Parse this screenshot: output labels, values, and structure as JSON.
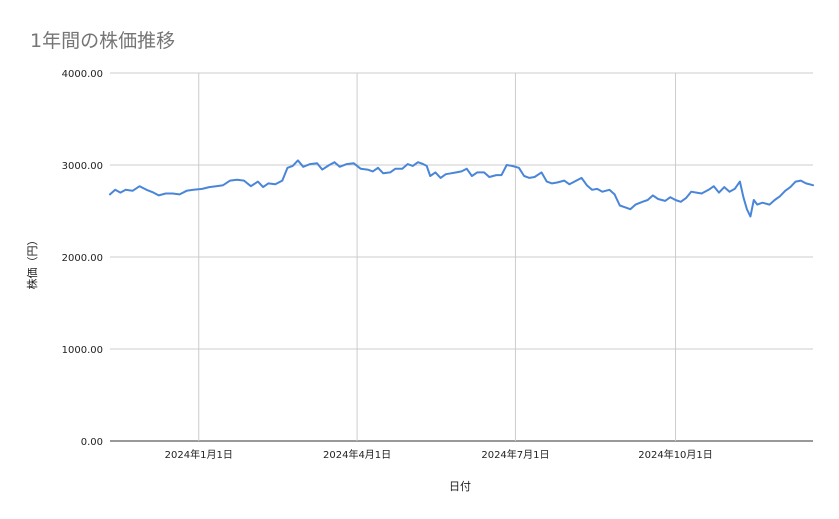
{
  "chart_data": {
    "type": "line",
    "title": "1年間の株価推移",
    "xlabel": "日付",
    "ylabel": "株価（円）",
    "ylim": [
      0,
      4000
    ],
    "yticks": [
      "0.00",
      "1000.00",
      "2000.00",
      "3000.00",
      "4000.00"
    ],
    "xlim": [
      "2023-11-11",
      "2024-12-19"
    ],
    "xticks": [
      {
        "date": "2024-01-01",
        "label": "2024年1月1日"
      },
      {
        "date": "2024-04-01",
        "label": "2024年4月1日"
      },
      {
        "date": "2024-07-01",
        "label": "2024年7月1日"
      },
      {
        "date": "2024-10-01",
        "label": "2024年10月1日"
      }
    ],
    "grid": true,
    "legend": "none",
    "series": [
      {
        "color": "#4a86d8",
        "points": [
          [
            "2023-11-11",
            2680
          ],
          [
            "2023-11-14",
            2730
          ],
          [
            "2023-11-17",
            2700
          ],
          [
            "2023-11-20",
            2730
          ],
          [
            "2023-11-24",
            2720
          ],
          [
            "2023-11-28",
            2770
          ],
          [
            "2023-12-02",
            2730
          ],
          [
            "2023-12-06",
            2700
          ],
          [
            "2023-12-09",
            2670
          ],
          [
            "2023-12-13",
            2690
          ],
          [
            "2023-12-17",
            2690
          ],
          [
            "2023-12-21",
            2680
          ],
          [
            "2023-12-25",
            2720
          ],
          [
            "2023-12-29",
            2730
          ],
          [
            "2024-01-03",
            2740
          ],
          [
            "2024-01-07",
            2760
          ],
          [
            "2024-01-11",
            2770
          ],
          [
            "2024-01-15",
            2780
          ],
          [
            "2024-01-19",
            2830
          ],
          [
            "2024-01-23",
            2840
          ],
          [
            "2024-01-27",
            2830
          ],
          [
            "2024-01-31",
            2770
          ],
          [
            "2024-02-04",
            2820
          ],
          [
            "2024-02-07",
            2760
          ],
          [
            "2024-02-10",
            2800
          ],
          [
            "2024-02-14",
            2790
          ],
          [
            "2024-02-18",
            2830
          ],
          [
            "2024-02-21",
            2970
          ],
          [
            "2024-02-24",
            2990
          ],
          [
            "2024-02-27",
            3050
          ],
          [
            "2024-03-01",
            2980
          ],
          [
            "2024-03-05",
            3010
          ],
          [
            "2024-03-09",
            3020
          ],
          [
            "2024-03-12",
            2950
          ],
          [
            "2024-03-16",
            3000
          ],
          [
            "2024-03-19",
            3030
          ],
          [
            "2024-03-22",
            2980
          ],
          [
            "2024-03-26",
            3010
          ],
          [
            "2024-03-30",
            3020
          ],
          [
            "2024-04-03",
            2960
          ],
          [
            "2024-04-07",
            2950
          ],
          [
            "2024-04-10",
            2930
          ],
          [
            "2024-04-13",
            2970
          ],
          [
            "2024-04-16",
            2910
          ],
          [
            "2024-04-20",
            2920
          ],
          [
            "2024-04-23",
            2960
          ],
          [
            "2024-04-27",
            2960
          ],
          [
            "2024-04-30",
            3010
          ],
          [
            "2024-05-03",
            2990
          ],
          [
            "2024-05-06",
            3030
          ],
          [
            "2024-05-09",
            3010
          ],
          [
            "2024-05-11",
            2990
          ],
          [
            "2024-05-13",
            2880
          ],
          [
            "2024-05-16",
            2920
          ],
          [
            "2024-05-19",
            2860
          ],
          [
            "2024-05-22",
            2900
          ],
          [
            "2024-05-25",
            2910
          ],
          [
            "2024-05-28",
            2920
          ],
          [
            "2024-05-31",
            2930
          ],
          [
            "2024-06-03",
            2960
          ],
          [
            "2024-06-06",
            2880
          ],
          [
            "2024-06-09",
            2920
          ],
          [
            "2024-06-13",
            2920
          ],
          [
            "2024-06-16",
            2870
          ],
          [
            "2024-06-20",
            2890
          ],
          [
            "2024-06-23",
            2890
          ],
          [
            "2024-06-26",
            3000
          ],
          [
            "2024-06-29",
            2990
          ],
          [
            "2024-07-03",
            2970
          ],
          [
            "2024-07-06",
            2880
          ],
          [
            "2024-07-09",
            2860
          ],
          [
            "2024-07-12",
            2870
          ],
          [
            "2024-07-16",
            2920
          ],
          [
            "2024-07-19",
            2820
          ],
          [
            "2024-07-22",
            2800
          ],
          [
            "2024-07-25",
            2810
          ],
          [
            "2024-07-29",
            2830
          ],
          [
            "2024-08-01",
            2790
          ],
          [
            "2024-08-05",
            2830
          ],
          [
            "2024-08-08",
            2860
          ],
          [
            "2024-08-11",
            2780
          ],
          [
            "2024-08-14",
            2730
          ],
          [
            "2024-08-17",
            2740
          ],
          [
            "2024-08-20",
            2710
          ],
          [
            "2024-08-24",
            2730
          ],
          [
            "2024-08-27",
            2680
          ],
          [
            "2024-08-30",
            2560
          ],
          [
            "2024-09-02",
            2540
          ],
          [
            "2024-09-05",
            2520
          ],
          [
            "2024-09-08",
            2570
          ],
          [
            "2024-09-12",
            2600
          ],
          [
            "2024-09-15",
            2620
          ],
          [
            "2024-09-18",
            2670
          ],
          [
            "2024-09-21",
            2630
          ],
          [
            "2024-09-25",
            2610
          ],
          [
            "2024-09-28",
            2650
          ],
          [
            "2024-10-01",
            2620
          ],
          [
            "2024-10-04",
            2600
          ],
          [
            "2024-10-07",
            2640
          ],
          [
            "2024-10-10",
            2710
          ],
          [
            "2024-10-13",
            2700
          ],
          [
            "2024-10-16",
            2690
          ],
          [
            "2024-10-20",
            2730
          ],
          [
            "2024-10-23",
            2770
          ],
          [
            "2024-10-26",
            2700
          ],
          [
            "2024-10-29",
            2760
          ],
          [
            "2024-11-01",
            2710
          ],
          [
            "2024-11-04",
            2740
          ],
          [
            "2024-11-07",
            2820
          ],
          [
            "2024-11-09",
            2650
          ],
          [
            "2024-11-11",
            2520
          ],
          [
            "2024-11-13",
            2440
          ],
          [
            "2024-11-15",
            2620
          ],
          [
            "2024-11-17",
            2570
          ],
          [
            "2024-11-20",
            2590
          ],
          [
            "2024-11-24",
            2570
          ],
          [
            "2024-11-27",
            2620
          ],
          [
            "2024-11-30",
            2660
          ],
          [
            "2024-12-03",
            2720
          ],
          [
            "2024-12-06",
            2760
          ],
          [
            "2024-12-09",
            2820
          ],
          [
            "2024-12-12",
            2830
          ],
          [
            "2024-12-15",
            2800
          ],
          [
            "2024-12-19",
            2780
          ]
        ]
      }
    ]
  }
}
